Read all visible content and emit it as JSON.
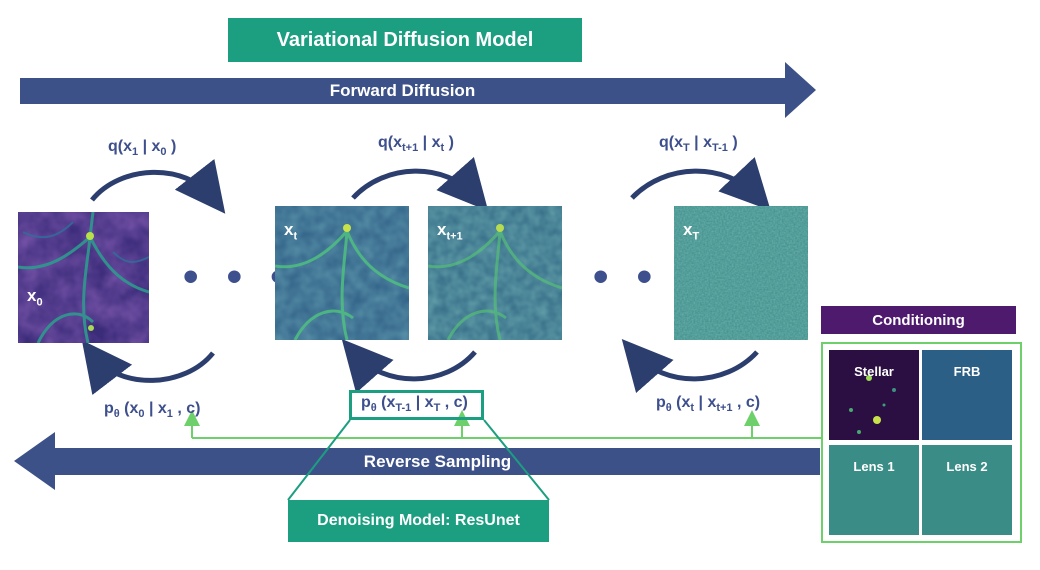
{
  "title": "Variational Diffusion Model",
  "forward_label": "Forward Diffusion",
  "reverse_label": "Reverse Sampling",
  "forward_eqs": [
    {
      "q": "q(x",
      "s1": "1",
      "mid": " | x",
      "s2": "0",
      "end": " )"
    },
    {
      "q": "q(x",
      "s1": "t+1",
      "mid": " | x",
      "s2": "t",
      "end": " )"
    },
    {
      "q": "q(x",
      "s1": "T",
      "mid": " | x",
      "s2": "T-1",
      "end": " )"
    }
  ],
  "reverse_eqs": [
    {
      "p": "p",
      "theta": "θ",
      "open": " (x",
      "s1": "0",
      "mid": " | x",
      "s2": "1",
      "end": " , c)"
    },
    {
      "p": "p",
      "theta": "θ",
      "open": " (x",
      "s1": "T-1",
      "mid": " | x",
      "s2": "T",
      "end": " , c)"
    },
    {
      "p": "p",
      "theta": "θ",
      "open": " (x",
      "s1": "t",
      "mid": " | x",
      "s2": "t+1",
      "end": " , c)"
    }
  ],
  "panels": [
    {
      "base": "x",
      "sub": "0"
    },
    {
      "base": "x",
      "sub": "t"
    },
    {
      "base": "x",
      "sub": "t+1"
    },
    {
      "base": "x",
      "sub": "T"
    }
  ],
  "ellipsis": "• • •",
  "conditioning": {
    "title": "Conditioning",
    "tiles": [
      "Stellar",
      "FRB",
      "Lens 1",
      "Lens 2"
    ]
  },
  "denoising_model": "Denoising Model: ResUnet",
  "colors": {
    "teal": "#1c9e80",
    "navy": "#3d5189",
    "purple": "#4e1a6e",
    "green_line": "#6dd06a"
  }
}
